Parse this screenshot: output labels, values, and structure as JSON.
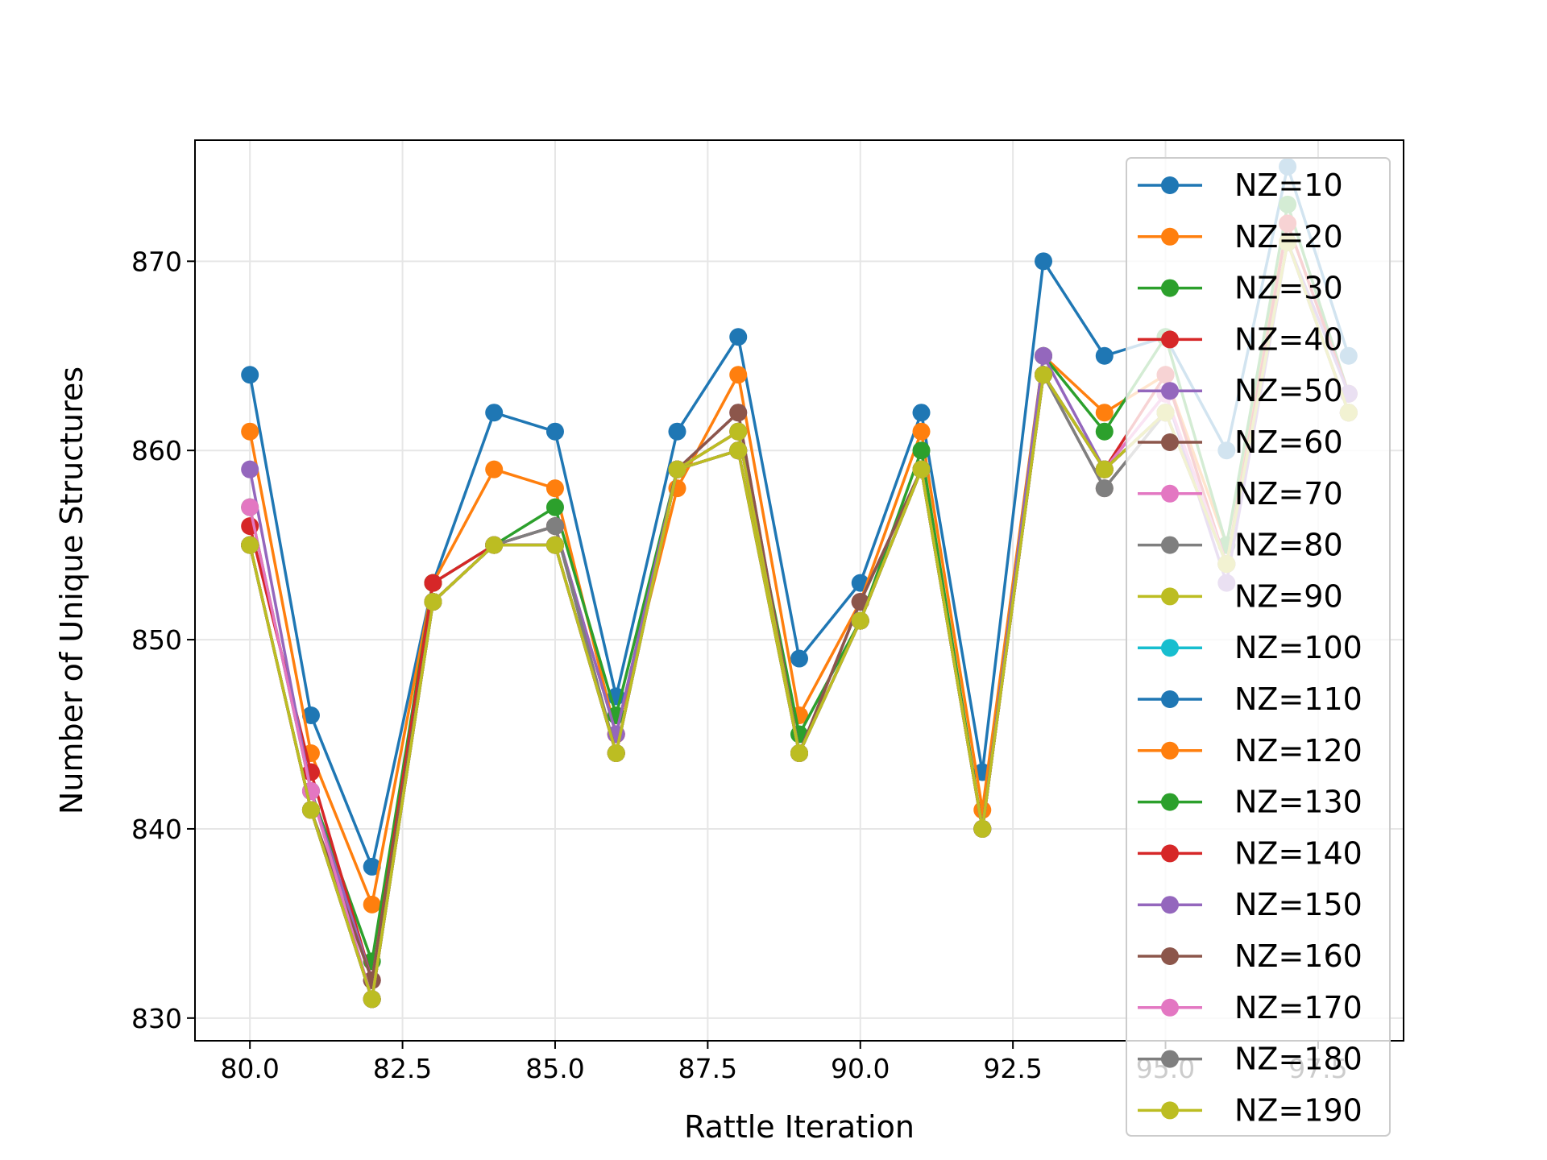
{
  "chart_data": {
    "type": "line",
    "xlabel": "Rattle Iteration",
    "ylabel": "Number of Unique Structures",
    "xlim": [
      79.1,
      98.9
    ],
    "ylim": [
      828.8,
      876.4
    ],
    "grid": true,
    "legend_position": "top-right",
    "x": [
      80,
      81,
      82,
      83,
      84,
      85,
      86,
      87,
      88,
      89,
      90,
      91,
      92,
      93,
      94,
      95,
      96,
      97,
      98
    ],
    "xticks": [
      80.0,
      82.5,
      85.0,
      87.5,
      90.0,
      92.5,
      95.0,
      97.5
    ],
    "xtick_labels": [
      "80.0",
      "82.5",
      "85.0",
      "87.5",
      "90.0",
      "92.5",
      "95.0",
      "97.5"
    ],
    "yticks": [
      830,
      840,
      850,
      860,
      870
    ],
    "ytick_labels": [
      "830",
      "840",
      "850",
      "860",
      "870"
    ],
    "series": [
      {
        "name": "NZ=10",
        "color": "#1f77b4",
        "values": [
          864,
          846,
          838,
          853,
          862,
          861,
          847,
          861,
          866,
          849,
          853,
          862,
          843,
          870,
          865,
          866,
          860,
          875,
          865
        ]
      },
      {
        "name": "NZ=20",
        "color": "#ff7f0e",
        "values": [
          861,
          844,
          836,
          853,
          859,
          858,
          845,
          858,
          864,
          846,
          852,
          861,
          841,
          865,
          862,
          864,
          855,
          872,
          863
        ]
      },
      {
        "name": "NZ=30",
        "color": "#2ca02c",
        "values": [
          857,
          842,
          833,
          853,
          855,
          857,
          846,
          859,
          861,
          845,
          851,
          860,
          840,
          865,
          861,
          866,
          855,
          873,
          863
        ]
      },
      {
        "name": "NZ=40",
        "color": "#d62728",
        "values": [
          856,
          843,
          832,
          853,
          855,
          856,
          845,
          859,
          861,
          844,
          852,
          859,
          840,
          864,
          859,
          864,
          854,
          872,
          863
        ]
      },
      {
        "name": "NZ=50",
        "color": "#9467bd",
        "values": [
          859,
          842,
          832,
          852,
          855,
          856,
          845,
          859,
          862,
          844,
          852,
          859,
          840,
          865,
          859,
          863,
          853,
          871,
          863
        ]
      },
      {
        "name": "NZ=60",
        "color": "#8c564b",
        "values": [
          855,
          841,
          832,
          852,
          855,
          856,
          844,
          859,
          862,
          844,
          852,
          859,
          840,
          864,
          858,
          862,
          854,
          871,
          862
        ]
      },
      {
        "name": "NZ=70",
        "color": "#e377c2",
        "values": [
          857,
          842,
          831,
          852,
          855,
          855,
          844,
          859,
          861,
          844,
          851,
          859,
          840,
          864,
          859,
          863,
          854,
          871,
          862
        ]
      },
      {
        "name": "NZ=80",
        "color": "#7f7f7f",
        "values": [
          855,
          841,
          831,
          852,
          855,
          856,
          844,
          859,
          861,
          844,
          851,
          859,
          840,
          864,
          858,
          862,
          854,
          871,
          862
        ]
      },
      {
        "name": "NZ=90",
        "color": "#bcbd22",
        "values": [
          855,
          841,
          831,
          852,
          855,
          855,
          844,
          859,
          861,
          844,
          851,
          859,
          840,
          864,
          859,
          862,
          854,
          871,
          862
        ]
      },
      {
        "name": "NZ=100",
        "color": "#17becf",
        "values": [
          855,
          841,
          831,
          852,
          855,
          855,
          844,
          859,
          860,
          844,
          851,
          859,
          840,
          864,
          859,
          862,
          854,
          871,
          862
        ]
      },
      {
        "name": "NZ=110",
        "color": "#1f77b4",
        "values": [
          855,
          841,
          831,
          852,
          855,
          855,
          844,
          859,
          860,
          844,
          851,
          859,
          840,
          864,
          859,
          862,
          854,
          871,
          862
        ]
      },
      {
        "name": "NZ=120",
        "color": "#ff7f0e",
        "values": [
          855,
          841,
          831,
          852,
          855,
          855,
          844,
          859,
          860,
          844,
          851,
          859,
          840,
          864,
          859,
          862,
          854,
          871,
          862
        ]
      },
      {
        "name": "NZ=130",
        "color": "#2ca02c",
        "values": [
          855,
          841,
          831,
          852,
          855,
          855,
          844,
          859,
          860,
          844,
          851,
          859,
          840,
          864,
          859,
          862,
          854,
          871,
          862
        ]
      },
      {
        "name": "NZ=140",
        "color": "#d62728",
        "values": [
          855,
          841,
          831,
          852,
          855,
          855,
          844,
          859,
          860,
          844,
          851,
          859,
          840,
          864,
          859,
          862,
          854,
          871,
          862
        ]
      },
      {
        "name": "NZ=150",
        "color": "#9467bd",
        "values": [
          855,
          841,
          831,
          852,
          855,
          855,
          844,
          859,
          860,
          844,
          851,
          859,
          840,
          864,
          859,
          862,
          854,
          871,
          862
        ]
      },
      {
        "name": "NZ=160",
        "color": "#8c564b",
        "values": [
          855,
          841,
          831,
          852,
          855,
          855,
          844,
          859,
          860,
          844,
          851,
          859,
          840,
          864,
          859,
          862,
          854,
          871,
          862
        ]
      },
      {
        "name": "NZ=170",
        "color": "#e377c2",
        "values": [
          855,
          841,
          831,
          852,
          855,
          855,
          844,
          859,
          860,
          844,
          851,
          859,
          840,
          864,
          859,
          862,
          854,
          871,
          862
        ]
      },
      {
        "name": "NZ=180",
        "color": "#7f7f7f",
        "values": [
          855,
          841,
          831,
          852,
          855,
          855,
          844,
          859,
          860,
          844,
          851,
          859,
          840,
          864,
          859,
          862,
          854,
          871,
          862
        ]
      },
      {
        "name": "NZ=190",
        "color": "#bcbd22",
        "values": [
          855,
          841,
          831,
          852,
          855,
          855,
          844,
          859,
          860,
          844,
          851,
          859,
          840,
          864,
          859,
          862,
          854,
          871,
          862
        ]
      }
    ]
  }
}
